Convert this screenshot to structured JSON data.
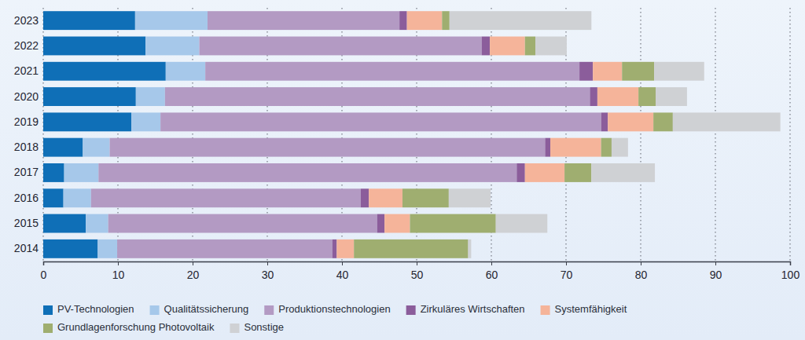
{
  "chart_data": {
    "type": "bar",
    "orientation": "horizontal",
    "stacked": true,
    "grid": true,
    "legend": "bottom-left",
    "categories": [
      "2023",
      "2022",
      "2021",
      "2020",
      "2019",
      "2018",
      "2017",
      "2016",
      "2015",
      "2014"
    ],
    "xlim": [
      0,
      100
    ],
    "xticks": [
      0,
      10,
      20,
      30,
      40,
      50,
      60,
      70,
      80,
      90,
      100
    ],
    "series": [
      {
        "name": "PV-Technologien",
        "color": "#0f6fb7",
        "values": [
          12.3,
          13.7,
          16.4,
          12.4,
          11.8,
          5.3,
          2.8,
          2.7,
          5.7,
          7.3
        ]
      },
      {
        "name": "Qualitätssicherung",
        "color": "#a6c8ea",
        "values": [
          9.7,
          7.2,
          5.3,
          3.9,
          3.9,
          3.6,
          4.6,
          3.7,
          3.0,
          2.6
        ]
      },
      {
        "name": "Produktionstechnologien",
        "color": "#b39ac3",
        "values": [
          25.7,
          37.8,
          50.1,
          56.9,
          59.0,
          58.3,
          56.0,
          36.1,
          36.0,
          28.8
        ]
      },
      {
        "name": "Zirkuläres Wirtschaften",
        "color": "#8b5d9b",
        "values": [
          1.0,
          1.1,
          1.8,
          1.0,
          0.9,
          0.7,
          1.1,
          1.1,
          1.0,
          0.6
        ]
      },
      {
        "name": "Systemfähigkeit",
        "color": "#f5b49a",
        "values": [
          4.7,
          4.7,
          3.9,
          5.5,
          6.1,
          6.8,
          5.3,
          4.5,
          3.4,
          2.3
        ]
      },
      {
        "name": "Grundlagenforschung Photovoltaik",
        "color": "#9fae70",
        "values": [
          1.0,
          1.4,
          4.3,
          2.3,
          2.6,
          1.4,
          3.6,
          6.2,
          11.5,
          15.3
        ]
      },
      {
        "name": "Sonstige",
        "color": "#cfd1d4",
        "values": [
          19.0,
          4.2,
          6.7,
          4.2,
          14.4,
          2.2,
          8.5,
          5.6,
          6.9,
          0.4
        ]
      }
    ]
  }
}
